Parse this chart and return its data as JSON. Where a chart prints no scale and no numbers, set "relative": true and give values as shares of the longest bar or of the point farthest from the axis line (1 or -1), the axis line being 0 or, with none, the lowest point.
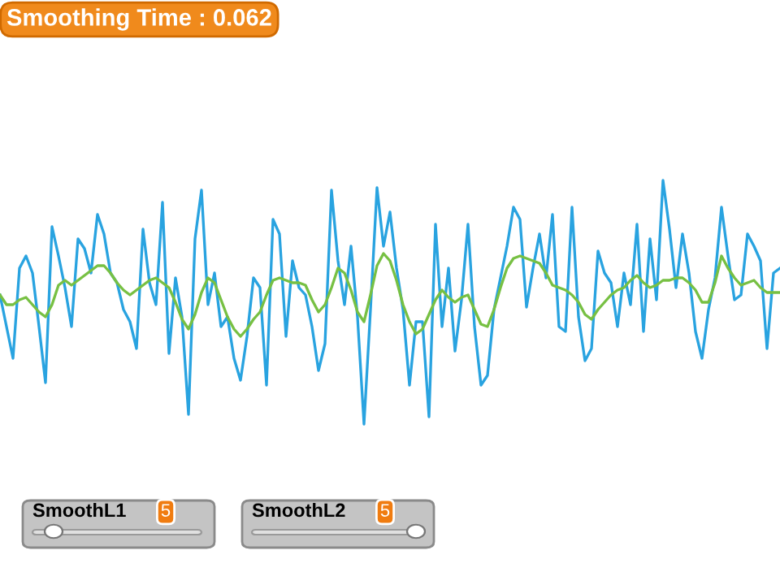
{
  "chart_data": {
    "type": "line",
    "relative": true,
    "marker": "none",
    "line_style": "solid",
    "annotations": [
      "Smoothing Time : 0.062",
      "SmoothL1",
      "5",
      "SmoothL2",
      "5"
    ],
    "categories": [
      null,
      null,
      null,
      null,
      null,
      null,
      null,
      null,
      null,
      null,
      null,
      null,
      null,
      null,
      null,
      null,
      null,
      null,
      null,
      null,
      null,
      null,
      null,
      null,
      null,
      null,
      null,
      null,
      null,
      null,
      null,
      null,
      null,
      null,
      null,
      null,
      null,
      null,
      null,
      null,
      null,
      null,
      null,
      null,
      null,
      null,
      null,
      null,
      null,
      null,
      null,
      null,
      null,
      null,
      null,
      null,
      null,
      null,
      null,
      null,
      null,
      null,
      null,
      null,
      null,
      null,
      null,
      null,
      null,
      null,
      null,
      null,
      null,
      null,
      null,
      null,
      null,
      null,
      null,
      null,
      null,
      null,
      null,
      null,
      null,
      null,
      null,
      null,
      null,
      null,
      null,
      null,
      null,
      null,
      null,
      null,
      null,
      null,
      null,
      null,
      null,
      null,
      null,
      null,
      null,
      null,
      null,
      null,
      null,
      null,
      null,
      null,
      null,
      null,
      null,
      null,
      null,
      null,
      null,
      null,
      null
    ],
    "series": [
      {
        "color": "#29a3e0",
        "values": [
          0.53,
          0.4,
          0.27,
          0.64,
          0.69,
          0.62,
          0.4,
          0.17,
          0.81,
          0.69,
          0.56,
          0.4,
          0.76,
          0.72,
          0.62,
          0.86,
          0.78,
          0.62,
          0.58,
          0.47,
          0.42,
          0.31,
          0.8,
          0.58,
          0.49,
          0.91,
          0.29,
          0.6,
          0.44,
          0.04,
          0.76,
          0.96,
          0.49,
          0.62,
          0.4,
          0.44,
          0.27,
          0.18,
          0.36,
          0.6,
          0.56,
          0.16,
          0.84,
          0.78,
          0.36,
          0.67,
          0.56,
          0.53,
          0.4,
          0.22,
          0.33,
          0.96,
          0.67,
          0.49,
          0.73,
          0.44,
          0,
          0.47,
          0.97,
          0.73,
          0.87,
          0.64,
          0.47,
          0.16,
          0.42,
          0.42,
          0.03,
          0.82,
          0.4,
          0.64,
          0.3,
          0.51,
          0.82,
          0.4,
          0.16,
          0.2,
          0.47,
          0.6,
          0.73,
          0.89,
          0.84,
          0.48,
          0.64,
          0.78,
          0.6,
          0.86,
          0.4,
          0.38,
          0.89,
          0.44,
          0.26,
          0.31,
          0.71,
          0.62,
          0.58,
          0.4,
          0.62,
          0.49,
          0.82,
          0.38,
          0.76,
          0.51,
          1.0,
          0.8,
          0.56,
          0.78,
          0.62,
          0.38,
          0.27,
          0.47,
          0.6,
          0.89,
          0.69,
          0.51,
          0.53,
          0.78,
          0.73,
          0.67,
          0.31,
          0.62,
          0.64
        ]
      },
      {
        "color": "#77c043",
        "values": [
          0.53,
          0.49,
          0.49,
          0.51,
          0.52,
          0.49,
          0.46,
          0.44,
          0.49,
          0.57,
          0.59,
          0.57,
          0.59,
          0.61,
          0.63,
          0.65,
          0.65,
          0.62,
          0.58,
          0.55,
          0.53,
          0.55,
          0.57,
          0.59,
          0.6,
          0.58,
          0.56,
          0.5,
          0.43,
          0.39,
          0.45,
          0.54,
          0.6,
          0.58,
          0.51,
          0.44,
          0.39,
          0.36,
          0.39,
          0.43,
          0.46,
          0.53,
          0.59,
          0.6,
          0.59,
          0.58,
          0.58,
          0.57,
          0.51,
          0.46,
          0.49,
          0.56,
          0.64,
          0.62,
          0.55,
          0.46,
          0.42,
          0.53,
          0.65,
          0.7,
          0.67,
          0.59,
          0.49,
          0.42,
          0.37,
          0.39,
          0.45,
          0.51,
          0.55,
          0.52,
          0.5,
          0.52,
          0.53,
          0.47,
          0.41,
          0.4,
          0.47,
          0.56,
          0.64,
          0.68,
          0.69,
          0.68,
          0.67,
          0.66,
          0.62,
          0.57,
          0.56,
          0.55,
          0.53,
          0.5,
          0.45,
          0.43,
          0.47,
          0.5,
          0.53,
          0.55,
          0.56,
          0.59,
          0.61,
          0.58,
          0.56,
          0.57,
          0.59,
          0.59,
          0.6,
          0.6,
          0.58,
          0.55,
          0.5,
          0.5,
          0.58,
          0.69,
          0.64,
          0.6,
          0.57,
          0.58,
          0.59,
          0.56,
          0.54,
          0.54,
          0.54
        ]
      }
    ]
  }
}
